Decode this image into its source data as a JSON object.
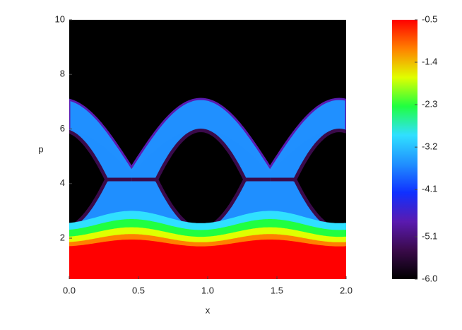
{
  "chart_data": {
    "type": "heatmap",
    "x_label": "x",
    "y_label": "p",
    "xlim": [
      0,
      2
    ],
    "xticks": [
      {
        "value": 0,
        "label": "0.0"
      },
      0.5,
      {
        "value": 1,
        "label": "1.0"
      },
      1.5,
      {
        "value": 2,
        "label": "2.0"
      }
    ],
    "ylim": [
      0.5,
      10
    ],
    "yticks": [
      2,
      4,
      6,
      8,
      10
    ],
    "clim": [
      -6,
      -0.5
    ],
    "cticks": [
      -0.5,
      -1.4,
      -2.3,
      -3.2,
      -4.1,
      -5.1,
      {
        "value": -6,
        "label": "-6.0"
      }
    ],
    "colormap": [
      "#000000",
      "#3a0a4a",
      "#5a1ab0",
      "#1030ff",
      "#2090ff",
      "#30e0ff",
      "#20ff40",
      "#e0ff00",
      "#ff8000",
      "#ff0000"
    ]
  }
}
